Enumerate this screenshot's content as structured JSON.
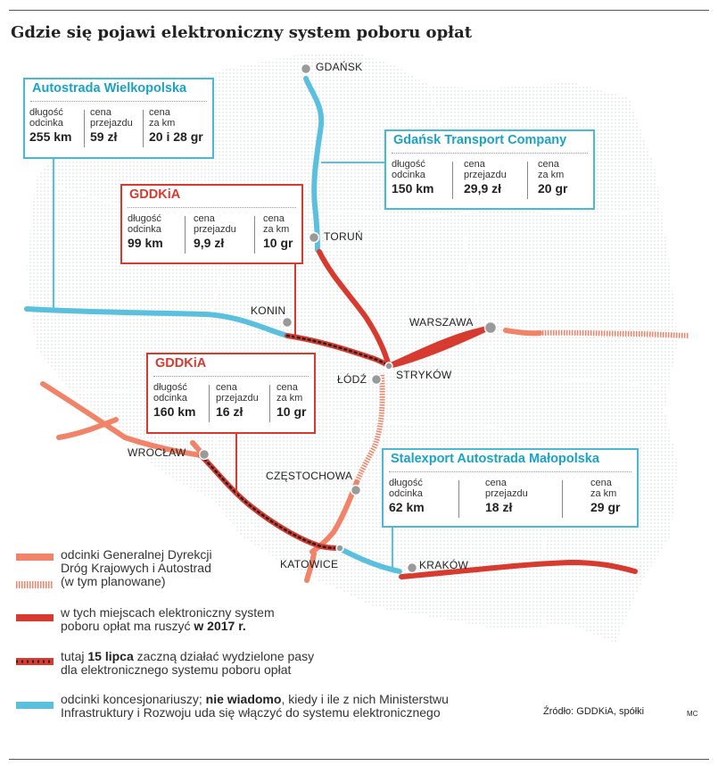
{
  "title": "Gdzie się pojawi elektroniczny system poboru opłat",
  "colors": {
    "gddkia": "#f08368",
    "planned": "#f08368",
    "etoll_2017": "#d73a2f",
    "dedicated_lanes": "#222222",
    "concession": "#5bc0de",
    "map_pattern": "#dfe3e6",
    "city_dot": "#999999"
  },
  "cities": {
    "gdansk": "GDAŃSK",
    "torun": "TORUŃ",
    "konin": "KONIN",
    "warszawa": "WARSZAWA",
    "lodz": "ŁÓDŹ",
    "strykow": "STRYKÓW",
    "wroclaw": "WROCŁAW",
    "czestochowa": "CZĘSTOCHOWA",
    "katowice": "KATOWICE",
    "krakow": "KRAKÓW"
  },
  "boxes": {
    "wielkopolska": {
      "title": "Autostrada Wielkopolska",
      "length_label": "długość\nodcinka",
      "length_value": "255 km",
      "price_label": "cena\nprzejazdu",
      "price_value": "59 zł",
      "perkm_label": "cena\nza km",
      "perkm_value": "20 i 28 gr"
    },
    "gtc": {
      "title": "Gdańsk Transport Company",
      "length_label": "długość\nodcinka",
      "length_value": "150 km",
      "price_label": "cena\nprzejazdu",
      "price_value": "29,9 zł",
      "perkm_label": "cena\nza km",
      "perkm_value": "20 gr"
    },
    "gddkia_north": {
      "title": "GDDKiA",
      "length_label": "długość\nodcinka",
      "length_value": "99 km",
      "price_label": "cena\nprzejazdu",
      "price_value": "9,9 zł",
      "perkm_label": "cena\nza km",
      "perkm_value": "10 gr"
    },
    "gddkia_south": {
      "title": "GDDKiA",
      "length_label": "długość\nodcinka",
      "length_value": "160 km",
      "price_label": "cena\nprzejazdu",
      "price_value": "16 zł",
      "perkm_label": "cena\nza km",
      "perkm_value": "10 gr"
    },
    "stalexport": {
      "title": "Stalexport Autostrada Małopolska",
      "length_label": "długość\nodcinka",
      "length_value": "62 km",
      "price_label": "cena\nprzejazdu",
      "price_value": "18 zł",
      "perkm_label": "cena\nza km",
      "perkm_value": "29 gr"
    }
  },
  "legend": {
    "gddkia": "odcinki Generalnej Dyrekcji\nDróg Krajowych i Autostrad\n(w tym planowane)",
    "etoll_pre": "w tych miejscach elektroniczny system\npoboru opłat ma ruszyć ",
    "etoll_bold": "w 2017 r.",
    "lanes_pre": "tutaj ",
    "lanes_bold": "15 lipca",
    "lanes_post": " zaczną działać wydzielone pasy\ndla elektronicznego systemu poboru opłat",
    "conc_pre": "odcinki koncesjonariuszy; ",
    "conc_bold": "nie wiadomo",
    "conc_post": ", kiedy i ile z nich Ministerstwu\nInfrastruktury i Rozwoju uda się włączyć do systemu elektronicznego"
  },
  "source": "Źródło: GDDKiA, spółki",
  "author": "MC"
}
